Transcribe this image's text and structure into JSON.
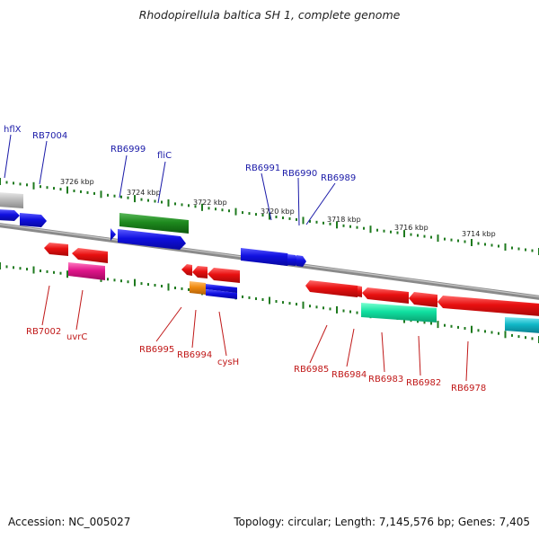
{
  "title": "Rhodopirellula baltica SH 1, complete genome",
  "accession_text": "Accession: NC_005027",
  "summary_text": "Topology: circular; Length: 7,145,576 bp; Genes: 7,405",
  "scale_labels": [
    "3726 kbp",
    "3724 kbp",
    "3722 kbp",
    "3720 kbp",
    "3718 kbp",
    "3716 kbp",
    "3714 kbp"
  ],
  "forward_labels": [
    "hflX",
    "RB7004",
    "RB6999",
    "fliC",
    "RB6991",
    "RB6990",
    "RB6989"
  ],
  "reverse_labels": [
    "RB7002",
    "uvrC",
    "RB6995",
    "RB6994",
    "cysH",
    "RB6985",
    "RB6984",
    "RB6983",
    "RB6982",
    "RB6978"
  ],
  "colors": {
    "forward_label": "#1a1aa8",
    "reverse_label": "#c01818",
    "backbone": "#7a7a7a",
    "tick": "#1e7a1e",
    "blue_gene": "#1010e0",
    "red_gene": "#e81010",
    "green_gene": "#1e8a1e",
    "pink_gene": "#e0158a",
    "teal_gene": "#10e0a0",
    "cyan_gene": "#10b8c8",
    "orange_gene": "#f08a10",
    "grey_gene": "#bcbcbc"
  }
}
